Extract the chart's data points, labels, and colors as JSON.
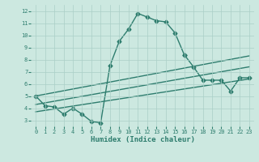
{
  "color": "#2e7d6e",
  "bg_color": "#cce8e0",
  "grid_color": "#aacfc7",
  "xlabel": "Humidex (Indice chaleur)",
  "ylim": [
    2.5,
    12.5
  ],
  "xlim": [
    -0.5,
    23.5
  ],
  "yticks": [
    3,
    4,
    5,
    6,
    7,
    8,
    9,
    10,
    11,
    12
  ],
  "xticks": [
    0,
    1,
    2,
    3,
    4,
    5,
    6,
    7,
    8,
    9,
    10,
    11,
    12,
    13,
    14,
    15,
    16,
    17,
    18,
    19,
    20,
    21,
    22,
    23
  ],
  "marker": "D",
  "markersize": 2.5,
  "linewidth": 1.0,
  "main_x": [
    0,
    1,
    2,
    3,
    4,
    5,
    6,
    7,
    8,
    9,
    10,
    11,
    12,
    13,
    14,
    15,
    16
  ],
  "main_y": [
    5.0,
    4.2,
    4.1,
    3.5,
    4.0,
    3.5,
    2.9,
    2.8,
    7.5,
    9.5,
    10.5,
    11.8,
    11.5,
    11.2,
    11.1,
    10.2,
    8.4
  ],
  "right_x": [
    16,
    17,
    18,
    19,
    20,
    21,
    22,
    23
  ],
  "right_y": [
    8.4,
    7.4,
    6.3,
    6.3,
    6.3,
    5.4,
    6.5,
    6.5
  ],
  "line1_x": [
    0,
    23
  ],
  "line1_y": [
    5.0,
    8.3
  ],
  "line2_x": [
    0,
    23
  ],
  "line2_y": [
    4.3,
    7.4
  ],
  "line3_x": [
    0,
    23
  ],
  "line3_y": [
    3.7,
    6.4
  ]
}
